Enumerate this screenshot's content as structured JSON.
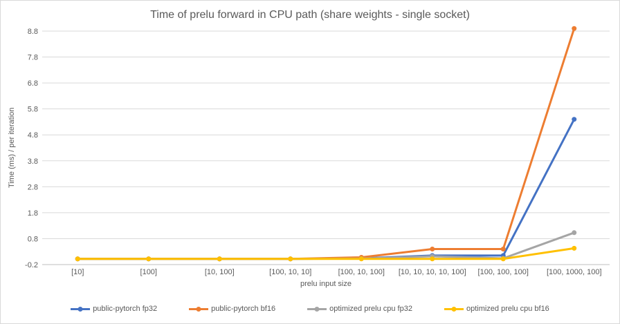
{
  "chart_data": {
    "type": "line",
    "title": "Time of prelu forward in CPU path (share weights - single socket)",
    "xlabel": "prelu input size",
    "ylabel": "Time (ms) / per iteration",
    "categories": [
      "[10]",
      "[100]",
      "[10, 100]",
      "[100, 10, 10]",
      "[100, 10, 100]",
      "[10, 10, 10, 10, 100]",
      "[100, 100, 100]",
      "[100, 1000, 100]"
    ],
    "series": [
      {
        "name": "public-pytorch fp32",
        "color": "#4472C4",
        "values": [
          0.02,
          0.02,
          0.02,
          0.02,
          0.04,
          0.15,
          0.15,
          5.4
        ]
      },
      {
        "name": "public-pytorch bf16",
        "color": "#ED7D31",
        "values": [
          0.02,
          0.02,
          0.02,
          0.02,
          0.08,
          0.4,
          0.4,
          8.9
        ]
      },
      {
        "name": "optimized prelu cpu fp32",
        "color": "#A5A5A5",
        "values": [
          0.02,
          0.02,
          0.02,
          0.02,
          0.03,
          0.12,
          0.04,
          1.03
        ]
      },
      {
        "name": "optimized prelu cpu bf16",
        "color": "#FFC000",
        "values": [
          0.02,
          0.02,
          0.02,
          0.02,
          0.02,
          0.02,
          0.02,
          0.43
        ]
      }
    ],
    "ylim": [
      -0.2,
      8.8
    ],
    "ytick_step": 1.0,
    "ytick_labels": [
      "-0.2",
      "0.8",
      "1.8",
      "2.8",
      "3.8",
      "4.8",
      "5.8",
      "6.8",
      "7.8",
      "8.8"
    ],
    "grid": "horizontal",
    "legend_position": "bottom",
    "marker": "circle",
    "style": {
      "text_color": "#595959",
      "gridline_color": "#D9D9D9",
      "axis_line_color": "#BFBFBF",
      "background": "#FFFFFF",
      "border_color": "#D9D9D9"
    }
  }
}
